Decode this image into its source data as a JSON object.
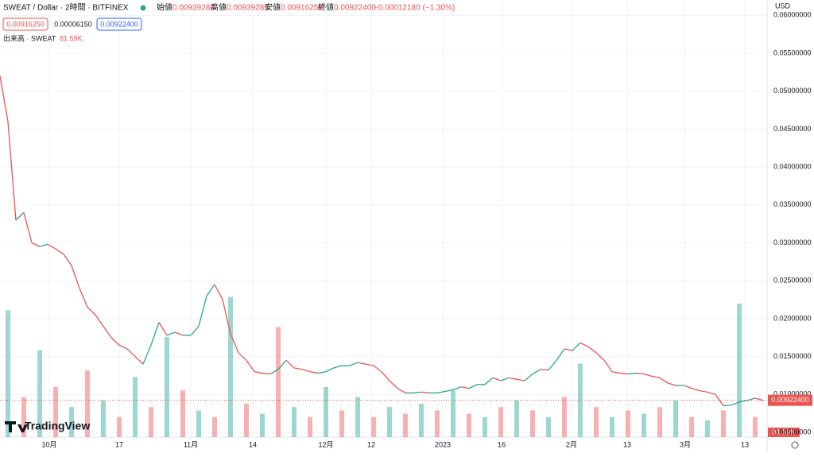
{
  "header": {
    "symbol": "SWEAT / Dollar · 2時間 · BITFINEX",
    "open_label": "始値",
    "open": "0.00939280",
    "high_label": "高値",
    "high": "0.00939280",
    "low_label": "安値",
    "low": "0.00916250",
    "close_label": "終値",
    "close": "0.00922400",
    "change": "−0.00012180 (−1.30%)",
    "bid": "0.00916250",
    "spread": "0.00006150",
    "ask": "0.00922400",
    "volume_title": "出来高 · SWEAT",
    "volume_value": "81.59K",
    "currency": "USD",
    "logo": "TradingView"
  },
  "chart_data": {
    "type": "line",
    "x": [
      0,
      1,
      2,
      3,
      4,
      5,
      6,
      7,
      8,
      9,
      10,
      11,
      12,
      13,
      14,
      15,
      16,
      17,
      18,
      19,
      20,
      21,
      22,
      23,
      24,
      25,
      26,
      27,
      28,
      29,
      30,
      31,
      32,
      33,
      34,
      35,
      36,
      37,
      38,
      39,
      40,
      41,
      42,
      43,
      44,
      45,
      46,
      47,
      48,
      49,
      50,
      51,
      52,
      53,
      54,
      55,
      56,
      57,
      58,
      59,
      60,
      61,
      62,
      63,
      64,
      65,
      66,
      67,
      68,
      69,
      70,
      71,
      72,
      73,
      74,
      75,
      76,
      77,
      78,
      79,
      80,
      81,
      82,
      83,
      84,
      85,
      86,
      87,
      88,
      89,
      90,
      91,
      92,
      93,
      94,
      95,
      96
    ],
    "series": [
      {
        "name": "SWEAT",
        "color": "#26a69a",
        "down_color": "#ef5350",
        "values": [
          0.052,
          0.046,
          0.033,
          0.034,
          0.03,
          0.0295,
          0.0298,
          0.0292,
          0.0285,
          0.027,
          0.024,
          0.0215,
          0.0205,
          0.019,
          0.0175,
          0.0165,
          0.016,
          0.015,
          0.014,
          0.0165,
          0.0195,
          0.0178,
          0.0182,
          0.0178,
          0.0178,
          0.019,
          0.023,
          0.0245,
          0.0225,
          0.018,
          0.0155,
          0.0145,
          0.013,
          0.0128,
          0.0127,
          0.0133,
          0.0145,
          0.0135,
          0.0133,
          0.013,
          0.0128,
          0.013,
          0.0135,
          0.0138,
          0.0138,
          0.0142,
          0.014,
          0.0138,
          0.013,
          0.0118,
          0.0108,
          0.0102,
          0.0102,
          0.0103,
          0.0102,
          0.0102,
          0.0104,
          0.0106,
          0.011,
          0.0108,
          0.0113,
          0.0113,
          0.0122,
          0.0118,
          0.0122,
          0.012,
          0.0118,
          0.0127,
          0.0133,
          0.0132,
          0.0145,
          0.016,
          0.0158,
          0.0168,
          0.0163,
          0.0155,
          0.0145,
          0.013,
          0.0128,
          0.0127,
          0.0128,
          0.0127,
          0.0124,
          0.0122,
          0.0115,
          0.0112,
          0.0112,
          0.0108,
          0.0105,
          0.0103,
          0.01,
          0.0085,
          0.0086,
          0.009,
          0.0092,
          0.0095,
          0.0092
        ]
      }
    ],
    "volume": {
      "values": [
        380,
        120,
        260,
        150,
        90,
        200,
        110,
        60,
        180,
        90,
        300,
        140,
        80,
        60,
        420,
        100,
        70,
        330,
        90,
        60,
        150,
        80,
        120,
        60,
        90,
        70,
        100,
        80,
        140,
        70,
        60,
        90,
        110,
        80,
        60,
        120,
        220,
        90,
        60,
        80,
        70,
        90,
        110,
        60,
        50,
        80,
        400,
        60
      ]
    },
    "volume_lim": [
      0,
      1000
    ],
    "xlim": [
      0,
      96
    ],
    "xticks": [
      {
        "value": 6.2,
        "label": "10月"
      },
      {
        "value": 15,
        "label": "17"
      },
      {
        "value": 24,
        "label": "11月"
      },
      {
        "value": 31.8,
        "label": "14"
      },
      {
        "value": 41,
        "label": "12月"
      },
      {
        "value": 46.7,
        "label": "12"
      },
      {
        "value": 55.7,
        "label": "2023"
      },
      {
        "value": 63.1,
        "label": "16"
      },
      {
        "value": 71.9,
        "label": "2月"
      },
      {
        "value": 78.9,
        "label": "13"
      },
      {
        "value": 86.2,
        "label": "3月"
      },
      {
        "value": 93.7,
        "label": "13"
      }
    ],
    "ylim": [
      0.004366,
      0.06203
    ],
    "yticks": [
      {
        "value": 0.005,
        "label": "0.00500000"
      },
      {
        "value": 0.01,
        "label": "0.01000000"
      },
      {
        "value": 0.015,
        "label": "0.01500000"
      },
      {
        "value": 0.02,
        "label": "0.02000000"
      },
      {
        "value": 0.025,
        "label": "0.02500000"
      },
      {
        "value": 0.03,
        "label": "0.03000000"
      },
      {
        "value": 0.035,
        "label": "0.03500000"
      },
      {
        "value": 0.04,
        "label": "0.04000000"
      },
      {
        "value": 0.045,
        "label": "0.04500000"
      },
      {
        "value": 0.05,
        "label": "0.05000000"
      },
      {
        "value": 0.055,
        "label": "0.05500000"
      },
      {
        "value": 0.06,
        "label": "0.06000000"
      }
    ],
    "current_price": {
      "value": 0.009224,
      "label": "0.00922400"
    },
    "grid": true
  }
}
